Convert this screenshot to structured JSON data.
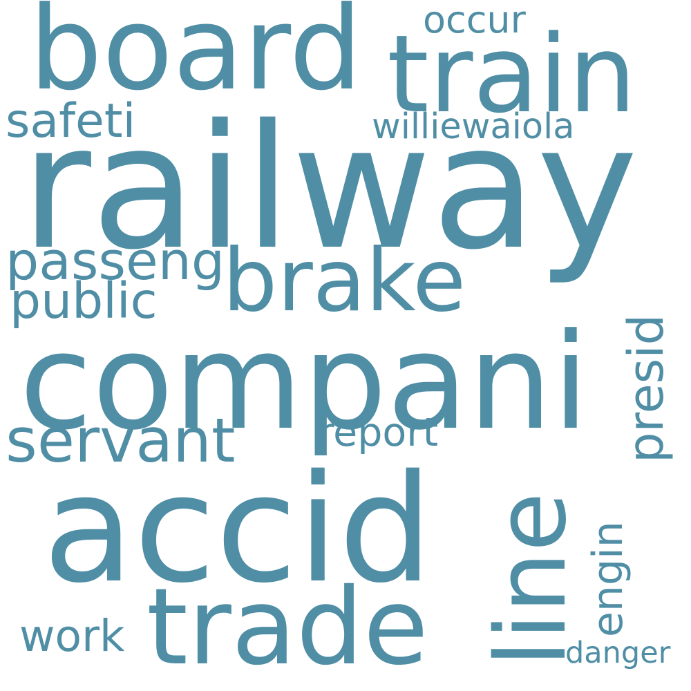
{
  "text_color": "#4f8ea5",
  "background_color": "#ffffff",
  "words": [
    {
      "text": "railway",
      "orientation": "horizontal"
    },
    {
      "text": "compani",
      "orientation": "horizontal"
    },
    {
      "text": "accid",
      "orientation": "horizontal"
    },
    {
      "text": "board",
      "orientation": "horizontal"
    },
    {
      "text": "train",
      "orientation": "horizontal"
    },
    {
      "text": "trade",
      "orientation": "horizontal"
    },
    {
      "text": "brake",
      "orientation": "horizontal"
    },
    {
      "text": "line",
      "orientation": "vertical"
    },
    {
      "text": "servant",
      "orientation": "horizontal"
    },
    {
      "text": "passeng",
      "orientation": "horizontal"
    },
    {
      "text": "public",
      "orientation": "horizontal"
    },
    {
      "text": "safeti",
      "orientation": "horizontal"
    },
    {
      "text": "williewaiola",
      "orientation": "horizontal"
    },
    {
      "text": "presid",
      "orientation": "vertical"
    },
    {
      "text": "report",
      "orientation": "horizontal"
    },
    {
      "text": "engin",
      "orientation": "vertical"
    },
    {
      "text": "work",
      "orientation": "horizontal"
    },
    {
      "text": "occur",
      "orientation": "horizontal"
    },
    {
      "text": "danger",
      "orientation": "horizontal"
    }
  ]
}
